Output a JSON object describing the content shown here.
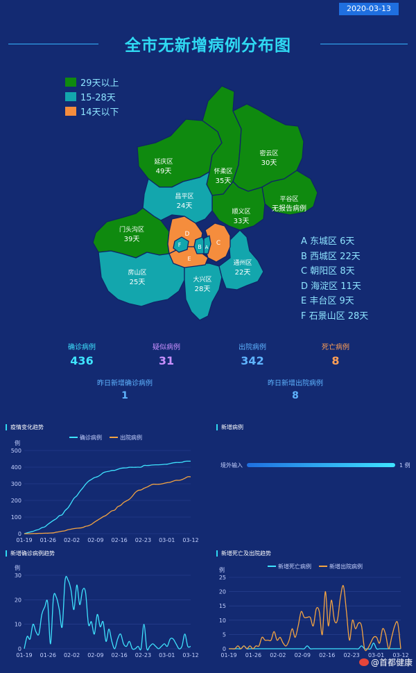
{
  "date": "2020-03-13",
  "title": "全市无新增病例分布图",
  "legend": [
    {
      "label": "29天以上",
      "color": "#0f8a0f"
    },
    {
      "label": "15-28天",
      "color": "#13a6ad"
    },
    {
      "label": "14天以下",
      "color": "#f58d3d"
    }
  ],
  "districts": [
    {
      "name": "延庆区",
      "days": "49天"
    },
    {
      "name": "密云区",
      "days": "30天"
    },
    {
      "name": "怀柔区",
      "days": "35天"
    },
    {
      "name": "昌平区",
      "days": "24天"
    },
    {
      "name": "平谷区",
      "days": "无报告病例"
    },
    {
      "name": "顺义区",
      "days": "33天"
    },
    {
      "name": "门头沟区",
      "days": "39天"
    },
    {
      "name": "房山区",
      "days": "25天"
    },
    {
      "name": "大兴区",
      "days": "28天"
    },
    {
      "name": "通州区",
      "days": "22天"
    }
  ],
  "map_letters": [
    "D",
    "F",
    "B",
    "A",
    "C",
    "E"
  ],
  "abbreviations": [
    "A 东城区 6天",
    "B 西城区 22天",
    "C 朝阳区 8天",
    "D 海淀区 11天",
    "E 丰台区 9天",
    "F 石景山区 28天"
  ],
  "stats": [
    {
      "label": "确诊病例",
      "value": "436",
      "label_color": "#3fe4ff",
      "value_color": "#3fe4ff"
    },
    {
      "label": "疑似病例",
      "value": "31",
      "label_color": "#c990ff",
      "value_color": "#c990ff"
    },
    {
      "label": "出院病例",
      "value": "342",
      "label_color": "#5fb4ff",
      "value_color": "#5fb4ff"
    },
    {
      "label": "死亡病例",
      "value": "8",
      "label_color": "#ff9f55",
      "value_color": "#ff9f55"
    }
  ],
  "stats2": [
    {
      "label": "昨日新增确诊病例",
      "value": "1"
    },
    {
      "label": "昨日新增出院病例",
      "value": "8"
    }
  ],
  "chart_data": [
    {
      "type": "line",
      "title": "疫情变化趋势",
      "ylabel": "例",
      "ylim": [
        0,
        500
      ],
      "yticks": [
        0,
        100,
        200,
        300,
        400,
        500
      ],
      "xticks": [
        "01-19",
        "01-26",
        "02-02",
        "02-09",
        "02-16",
        "02-23",
        "03-01",
        "03-12"
      ],
      "series": [
        {
          "name": "确诊病例",
          "color": "#3fe4ff",
          "values": [
            0,
            5,
            10,
            14,
            21,
            26,
            36,
            41,
            55,
            68,
            80,
            91,
            108,
            114,
            139,
            156,
            183,
            212,
            228,
            253,
            274,
            297,
            315,
            326,
            337,
            342,
            352,
            366,
            372,
            375,
            380,
            381,
            387,
            393,
            395,
            396,
            399,
            399,
            399,
            400,
            400,
            410,
            410,
            411,
            413,
            414,
            414,
            415,
            417,
            418,
            422,
            426,
            428,
            428,
            429,
            435,
            436,
            436
          ]
        },
        {
          "name": "出院病例",
          "color": "#f4a442",
          "values": [
            0,
            0,
            0,
            1,
            1,
            2,
            2,
            3,
            3,
            4,
            5,
            9,
            12,
            15,
            18,
            24,
            27,
            31,
            33,
            34,
            37,
            44,
            48,
            56,
            69,
            80,
            91,
            102,
            110,
            124,
            137,
            142,
            162,
            170,
            187,
            197,
            207,
            225,
            247,
            260,
            263,
            273,
            280,
            289,
            297,
            297,
            297,
            299,
            303,
            307,
            309,
            316,
            321,
            321,
            325,
            333,
            342,
            342
          ]
        }
      ]
    },
    {
      "type": "bar",
      "title": "新增病例",
      "categories": [
        "境外输入"
      ],
      "values": [
        1
      ],
      "value_label": "1 例"
    },
    {
      "type": "line",
      "title": "新增确诊病例趋势",
      "ylabel": "例",
      "ylim": [
        0,
        30
      ],
      "yticks": [
        0,
        10,
        20,
        30
      ],
      "xticks": [
        "01-19",
        "01-26",
        "02-02",
        "02-09",
        "02-16",
        "02-23",
        "03-01",
        "03-12"
      ],
      "series": [
        {
          "name": "新增确诊",
          "color": "#3fe4ff",
          "values": [
            0,
            5,
            4,
            10,
            7,
            6,
            14,
            17,
            19,
            2,
            21,
            21,
            16,
            9,
            28,
            28,
            24,
            16,
            26,
            18,
            24,
            23,
            10,
            11,
            6,
            14,
            9,
            11,
            3,
            8,
            3,
            0,
            4,
            6,
            2,
            1,
            3,
            0,
            0,
            1,
            0,
            10,
            0,
            1,
            2,
            1,
            0,
            1,
            2,
            1,
            4,
            4,
            2,
            0,
            1,
            6,
            1,
            1
          ]
        }
      ]
    },
    {
      "type": "line",
      "title": "新增死亡及出院趋势",
      "ylabel": "例",
      "ylim": [
        0,
        25
      ],
      "yticks": [
        0,
        5,
        10,
        15,
        20,
        25
      ],
      "xticks": [
        "01-19",
        "01-26",
        "02-02",
        "02-09",
        "02-16",
        "02-23",
        "03-01",
        "03-12"
      ],
      "series": [
        {
          "name": "新增死亡病例",
          "color": "#3fe4ff",
          "values": [
            0,
            0,
            0,
            0,
            0,
            1,
            0,
            0,
            0,
            0,
            0,
            0,
            0,
            0,
            0,
            0,
            0,
            0,
            0,
            0,
            0,
            0,
            0,
            0,
            0,
            0,
            1,
            0,
            0,
            0,
            0,
            0,
            0,
            0,
            0,
            0,
            0,
            0,
            0,
            0,
            0,
            0,
            0,
            0,
            1,
            0,
            0,
            0,
            2,
            0,
            0,
            0,
            0,
            0,
            0,
            0,
            0,
            0
          ]
        },
        {
          "name": "新增出院病例",
          "color": "#f4a442",
          "values": [
            0,
            0,
            0,
            1,
            0,
            1,
            0,
            1,
            0,
            1,
            1,
            4,
            3,
            3,
            3,
            6,
            3,
            4,
            2,
            1,
            3,
            7,
            4,
            8,
            13,
            11,
            11,
            11,
            8,
            14,
            13,
            5,
            20,
            8,
            17,
            10,
            10,
            18,
            22,
            13,
            3,
            10,
            7,
            9,
            8,
            0,
            0,
            2,
            4,
            4,
            2,
            7,
            5,
            0,
            4,
            8,
            9,
            0
          ]
        }
      ]
    }
  ],
  "watermark": "@首都健康"
}
